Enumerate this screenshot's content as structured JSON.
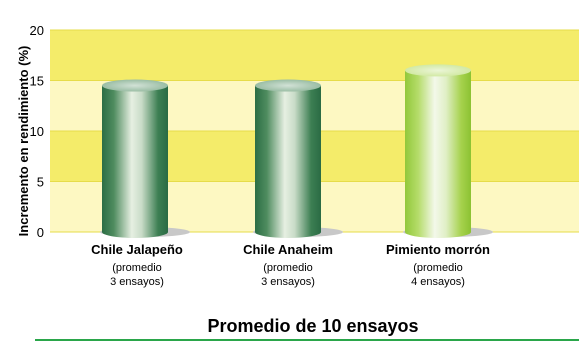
{
  "chart_data": {
    "type": "bar",
    "title": "",
    "xlabel": "Promedio de 10 ensayos",
    "ylabel": "Incremento en rendimiento (%)",
    "ylim": [
      0,
      20
    ],
    "yticks": [
      "0",
      "5",
      "10",
      "15",
      "20"
    ],
    "grid": true,
    "legend": "none",
    "categories": [
      "Chile Jalapeño",
      "Chile Anaheim",
      "Pimiento morrón"
    ],
    "category_notes": [
      [
        "(promedio",
        "3 ensayos)"
      ],
      [
        "(promedio",
        "3 ensayos)"
      ],
      [
        "(promedio",
        "4 ensayos)"
      ]
    ],
    "values": [
      14.5,
      14.5,
      16
    ],
    "colors": {
      "bar_dark_green": "#2e7d4f",
      "bar_light_green": "#9fd13a",
      "plot_band_yellow": "#f4ec6a",
      "plot_band_pale": "#fdf8c2",
      "shadow": "#c8c8c8",
      "baseline_green": "#2aa64a"
    },
    "bar_styles": [
      "dark",
      "dark",
      "light"
    ]
  }
}
